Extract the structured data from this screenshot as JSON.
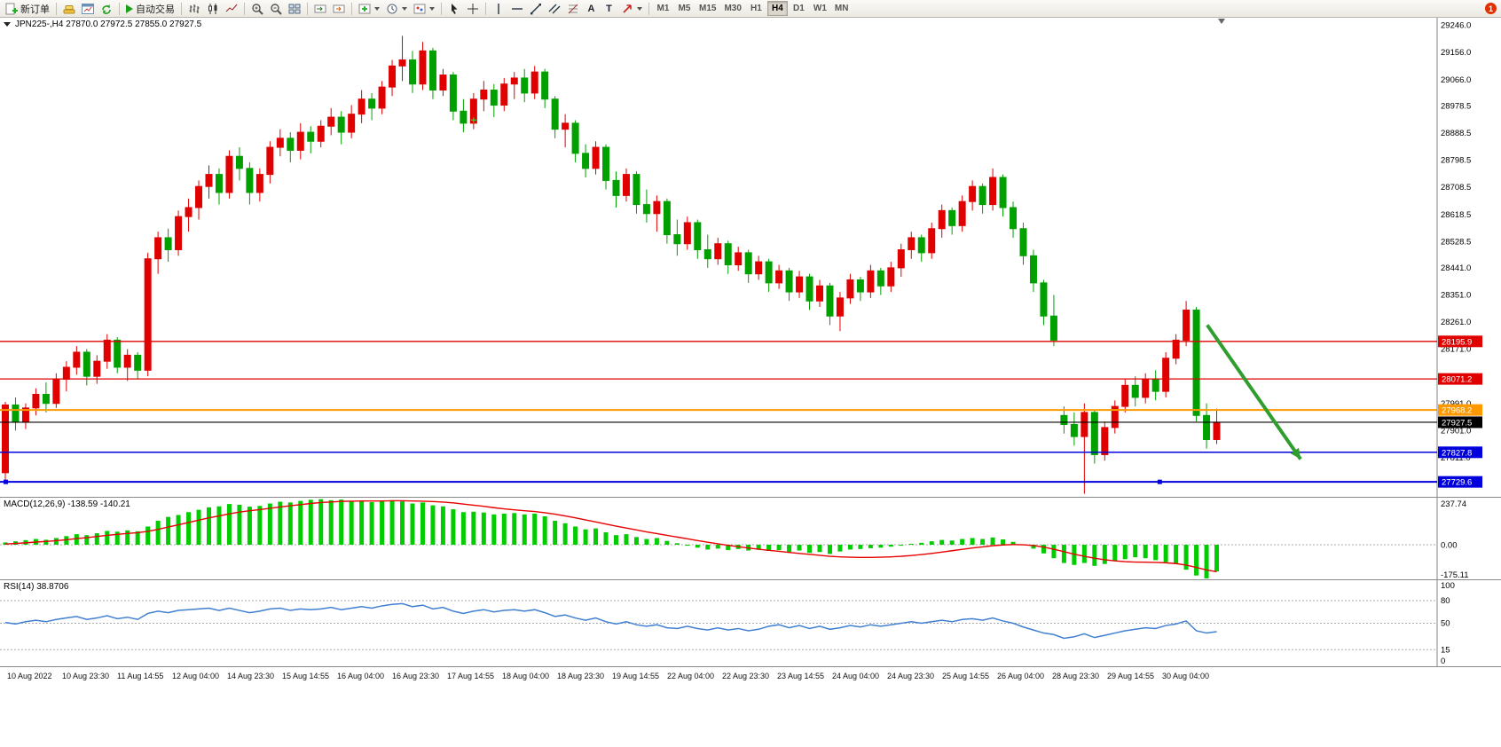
{
  "toolbar": {
    "new_order_label": "新订单",
    "autotrading_label": "自动交易",
    "timeframes": [
      "M1",
      "M5",
      "M15",
      "M30",
      "H1",
      "H4",
      "D1",
      "W1",
      "MN"
    ],
    "active_timeframe": "H4",
    "notification_count": "1"
  },
  "icons": {
    "text_tool": "A",
    "label_tool": "T"
  },
  "chart": {
    "info_text": "JPN225-,H4 27870.0 27972.5 27855.0 27927.5"
  },
  "colors": {
    "up": "#e00000",
    "down": "#00a000",
    "macd_hist": "#00cc00",
    "macd_signal": "#e80000",
    "rsi_line": "#4080d0",
    "grid_dash": "#a8a8a8",
    "axis_line": "#808080",
    "plus_marker": "#33cc33"
  },
  "chart_data": {
    "type": "candlestick+indicators",
    "symbol": "JPN225-",
    "timeframe": "H4",
    "price_range": [
      27680,
      29270
    ],
    "price_ticks": [
      "29246.0",
      "29156.0",
      "29066.0",
      "28978.5",
      "28888.5",
      "28798.5",
      "28708.5",
      "28618.5",
      "28528.5",
      "28441.0",
      "28351.0",
      "28261.0",
      "28171.0",
      "28081.0",
      "27991.0",
      "27901.0",
      "27811.0",
      "27721.0"
    ],
    "candles": [
      [
        27760,
        27995,
        27735,
        27985
      ],
      [
        27985,
        28010,
        27900,
        27930
      ],
      [
        27930,
        27990,
        27905,
        27975
      ],
      [
        27975,
        28040,
        27950,
        28020
      ],
      [
        28020,
        28060,
        27960,
        27990
      ],
      [
        27990,
        28090,
        27975,
        28070
      ],
      [
        28070,
        28130,
        28030,
        28110
      ],
      [
        28110,
        28180,
        28085,
        28160
      ],
      [
        28160,
        28170,
        28050,
        28080
      ],
      [
        28080,
        28150,
        28055,
        28130
      ],
      [
        28130,
        28220,
        28105,
        28200
      ],
      [
        28200,
        28210,
        28090,
        28110
      ],
      [
        28110,
        28170,
        28065,
        28150
      ],
      [
        28150,
        28160,
        28070,
        28100
      ],
      [
        28100,
        28490,
        28080,
        28470
      ],
      [
        28470,
        28560,
        28420,
        28540
      ],
      [
        28540,
        28570,
        28460,
        28500
      ],
      [
        28500,
        28630,
        28480,
        28610
      ],
      [
        28610,
        28670,
        28560,
        28640
      ],
      [
        28640,
        28730,
        28600,
        28710
      ],
      [
        28710,
        28780,
        28670,
        28750
      ],
      [
        28750,
        28770,
        28650,
        28690
      ],
      [
        28690,
        28830,
        28670,
        28810
      ],
      [
        28810,
        28840,
        28730,
        28770
      ],
      [
        28770,
        28790,
        28650,
        28690
      ],
      [
        28690,
        28770,
        28660,
        28750
      ],
      [
        28750,
        28860,
        28720,
        28840
      ],
      [
        28840,
        28900,
        28810,
        28870
      ],
      [
        28870,
        28890,
        28790,
        28830
      ],
      [
        28830,
        28920,
        28800,
        28890
      ],
      [
        28890,
        28910,
        28820,
        28860
      ],
      [
        28860,
        28930,
        28840,
        28910
      ],
      [
        28910,
        28970,
        28880,
        28940
      ],
      [
        28940,
        28960,
        28850,
        28890
      ],
      [
        28890,
        28980,
        28870,
        28950
      ],
      [
        28950,
        29030,
        28920,
        29000
      ],
      [
        29000,
        29020,
        28930,
        28970
      ],
      [
        28970,
        29060,
        28950,
        29040
      ],
      [
        29040,
        29130,
        29010,
        29110
      ],
      [
        29110,
        29210,
        29060,
        29130
      ],
      [
        29130,
        29160,
        29020,
        29050
      ],
      [
        29050,
        29190,
        29030,
        29160
      ],
      [
        29160,
        29170,
        29000,
        29030
      ],
      [
        29030,
        29100,
        29010,
        29080
      ],
      [
        29080,
        29090,
        28930,
        28960
      ],
      [
        28960,
        29000,
        28890,
        28920
      ],
      [
        28920,
        29020,
        28900,
        29000
      ],
      [
        29000,
        29060,
        28960,
        29030
      ],
      [
        29030,
        29050,
        28940,
        28980
      ],
      [
        28980,
        29070,
        28960,
        29050
      ],
      [
        29050,
        29090,
        29000,
        29070
      ],
      [
        29070,
        29100,
        28990,
        29020
      ],
      [
        29020,
        29110,
        29000,
        29090
      ],
      [
        29090,
        29100,
        28970,
        29000
      ],
      [
        29000,
        29010,
        28870,
        28900
      ],
      [
        28900,
        28950,
        28840,
        28920
      ],
      [
        28920,
        28930,
        28790,
        28820
      ],
      [
        28820,
        28850,
        28740,
        28770
      ],
      [
        28770,
        28860,
        28750,
        28840
      ],
      [
        28840,
        28850,
        28700,
        28730
      ],
      [
        28730,
        28760,
        28640,
        28680
      ],
      [
        28680,
        28770,
        28660,
        28750
      ],
      [
        28750,
        28760,
        28620,
        28650
      ],
      [
        28650,
        28700,
        28590,
        28620
      ],
      [
        28620,
        28680,
        28560,
        28660
      ],
      [
        28660,
        28670,
        28520,
        28550
      ],
      [
        28550,
        28600,
        28480,
        28520
      ],
      [
        28520,
        28610,
        28500,
        28590
      ],
      [
        28590,
        28600,
        28470,
        28500
      ],
      [
        28500,
        28550,
        28440,
        28470
      ],
      [
        28470,
        28540,
        28450,
        28520
      ],
      [
        28520,
        28530,
        28420,
        28450
      ],
      [
        28450,
        28510,
        28430,
        28490
      ],
      [
        28490,
        28500,
        28390,
        28420
      ],
      [
        28420,
        28480,
        28400,
        28460
      ],
      [
        28460,
        28470,
        28360,
        28390
      ],
      [
        28390,
        28450,
        28370,
        28430
      ],
      [
        28430,
        28440,
        28330,
        28360
      ],
      [
        28360,
        28430,
        28340,
        28410
      ],
      [
        28410,
        28420,
        28300,
        28330
      ],
      [
        28330,
        28400,
        28310,
        28380
      ],
      [
        28380,
        28390,
        28250,
        28280
      ],
      [
        28280,
        28360,
        28230,
        28340
      ],
      [
        28340,
        28420,
        28320,
        28400
      ],
      [
        28400,
        28410,
        28330,
        28360
      ],
      [
        28360,
        28450,
        28340,
        28430
      ],
      [
        28430,
        28440,
        28350,
        28380
      ],
      [
        28380,
        28460,
        28360,
        28440
      ],
      [
        28440,
        28520,
        28410,
        28500
      ],
      [
        28500,
        28560,
        28470,
        28540
      ],
      [
        28540,
        28550,
        28460,
        28490
      ],
      [
        28490,
        28590,
        28470,
        28570
      ],
      [
        28570,
        28650,
        28540,
        28630
      ],
      [
        28630,
        28640,
        28550,
        28580
      ],
      [
        28580,
        28680,
        28560,
        28660
      ],
      [
        28660,
        28730,
        28630,
        28710
      ],
      [
        28710,
        28720,
        28620,
        28650
      ],
      [
        28650,
        28770,
        28630,
        28740
      ],
      [
        28740,
        28750,
        28610,
        28640
      ],
      [
        28640,
        28660,
        28540,
        28570
      ],
      [
        28570,
        28590,
        28450,
        28480
      ],
      [
        28480,
        28500,
        28360,
        28390
      ],
      [
        28390,
        28400,
        28250,
        28280
      ],
      [
        28280,
        28350,
        28180,
        28200
      ],
      [
        27950,
        27980,
        27890,
        27920
      ],
      [
        27920,
        27960,
        27850,
        27880
      ],
      [
        27880,
        27990,
        27690,
        27960
      ],
      [
        27960,
        27970,
        27790,
        27820
      ],
      [
        27820,
        27930,
        27800,
        27910
      ],
      [
        27910,
        28000,
        27890,
        27980
      ],
      [
        27980,
        28070,
        27960,
        28050
      ],
      [
        28050,
        28080,
        27980,
        28010
      ],
      [
        28010,
        28090,
        27990,
        28070
      ],
      [
        28070,
        28100,
        28000,
        28030
      ],
      [
        28030,
        28160,
        28010,
        28140
      ],
      [
        28140,
        28220,
        28120,
        28200
      ],
      [
        28200,
        28330,
        28180,
        28300
      ],
      [
        28300,
        28310,
        27930,
        27950
      ],
      [
        27950,
        27990,
        27840,
        27870
      ],
      [
        27870,
        27972.5,
        27855,
        27927.5
      ]
    ],
    "plus_marker": {
      "i": 46,
      "price": 28930
    },
    "hlines": [
      {
        "price": 28195.9,
        "label": "28195.9",
        "color": "#e00000",
        "width": 1.3
      },
      {
        "price": 28071.2,
        "label": "28071.2",
        "color": "#e00000",
        "width": 1.3
      },
      {
        "price": 27968.2,
        "label": "27968.2",
        "color": "#ff9900",
        "width": 2
      },
      {
        "price": 27927.5,
        "label": "27927.5",
        "color": "#000000",
        "width": 1.2
      },
      {
        "price": 27827.8,
        "label": "27827.8",
        "color": "#0000dd",
        "width": 1.5
      },
      {
        "price": 27729.6,
        "label": "27729.6",
        "color": "#0000dd",
        "width": 2,
        "handle_fracs": [
          0.004,
          0.807
        ]
      }
    ],
    "arrow": {
      "x1_frac": 0.84,
      "price1": 28250,
      "x2_frac": 0.905,
      "price2": 27805,
      "color": "#2f9e2f",
      "width": 4
    },
    "time_labels": [
      "10 Aug 2022",
      "10 Aug 23:30",
      "11 Aug 14:55",
      "12 Aug 04:00",
      "14 Aug 23:30",
      "15 Aug 14:55",
      "16 Aug 04:00",
      "16 Aug 23:30",
      "17 Aug 14:55",
      "18 Aug 04:00",
      "18 Aug 23:30",
      "19 Aug 14:55",
      "22 Aug 04:00",
      "22 Aug 23:30",
      "23 Aug 14:55",
      "24 Aug 04:00",
      "24 Aug 23:30",
      "25 Aug 14:55",
      "26 Aug 04:00",
      "28 Aug 23:30",
      "29 Aug 14:55",
      "30 Aug 04:00"
    ],
    "macd": {
      "label": "MACD(12,26,9)",
      "values_text": "-138.59 -140.21",
      "scale": {
        "max": "237.74",
        "zero": "0.00",
        "min": "-175.11"
      },
      "range": [
        245,
        -180
      ],
      "histogram": [
        12,
        18,
        24,
        30,
        26,
        35,
        45,
        55,
        50,
        60,
        72,
        68,
        75,
        70,
        95,
        125,
        145,
        155,
        170,
        182,
        195,
        200,
        212,
        208,
        198,
        202,
        215,
        224,
        220,
        228,
        234,
        237.74,
        232,
        235,
        228,
        230,
        222,
        228,
        232,
        226,
        215,
        220,
        205,
        200,
        185,
        170,
        172,
        168,
        158,
        162,
        165,
        158,
        162,
        148,
        125,
        112,
        95,
        80,
        85,
        65,
        50,
        55,
        40,
        30,
        35,
        20,
        8,
        -5,
        -15,
        -25,
        -20,
        -28,
        -22,
        -30,
        -26,
        -32,
        -28,
        -38,
        -30,
        -42,
        -38,
        -48,
        -35,
        -25,
        -22,
        -18,
        -15,
        -10,
        -5,
        5,
        10,
        18,
        25,
        22,
        30,
        35,
        30,
        38,
        28,
        15,
        0,
        -20,
        -45,
        -70,
        -95,
        -105,
        -95,
        -110,
        -100,
        -85,
        -75,
        -65,
        -70,
        -80,
        -90,
        -100,
        -130,
        -160,
        -175.11,
        -138.59
      ],
      "signal": [
        4,
        7,
        10,
        14,
        17,
        21,
        26,
        32,
        37,
        43,
        49,
        54,
        59,
        63,
        70,
        80,
        92,
        104,
        116,
        128,
        140,
        150,
        161,
        170,
        177,
        183,
        190,
        197,
        203,
        209,
        215,
        220,
        223,
        226,
        227,
        228,
        228,
        228,
        229,
        229,
        228,
        227,
        225,
        222,
        218,
        212,
        206,
        200,
        193,
        187,
        182,
        177,
        173,
        167,
        159,
        150,
        140,
        129,
        119,
        108,
        97,
        87,
        77,
        67,
        58,
        49,
        40,
        31,
        22,
        13,
        5,
        -3,
        -10,
        -17,
        -23,
        -29,
        -34,
        -40,
        -45,
        -50,
        -55,
        -60,
        -63,
        -65,
        -66,
        -66,
        -65,
        -63,
        -60,
        -56,
        -51,
        -45,
        -38,
        -31,
        -24,
        -17,
        -11,
        -5,
        -1,
        1,
        0,
        -4,
        -12,
        -23,
        -36,
        -49,
        -60,
        -70,
        -78,
        -84,
        -88,
        -90,
        -91,
        -92,
        -94,
        -98,
        -106,
        -118,
        -131,
        -140.21
      ]
    },
    "rsi": {
      "label": "RSI(14)",
      "value_text": "38.8706",
      "levels": [
        "100",
        "80",
        "50",
        "15",
        "0"
      ],
      "values": [
        51,
        49,
        52,
        54,
        52,
        55,
        57,
        59,
        55,
        57,
        60,
        56,
        58,
        55,
        63,
        66,
        64,
        67,
        68,
        69,
        70,
        67,
        70,
        67,
        64,
        66,
        69,
        70,
        67,
        69,
        68,
        69,
        71,
        68,
        70,
        72,
        70,
        73,
        75,
        76,
        72,
        74,
        69,
        71,
        66,
        63,
        66,
        68,
        65,
        67,
        68,
        66,
        68,
        64,
        59,
        61,
        57,
        54,
        57,
        52,
        49,
        52,
        48,
        46,
        48,
        44,
        43,
        46,
        43,
        41,
        44,
        41,
        43,
        40,
        42,
        46,
        48,
        44,
        47,
        43,
        46,
        42,
        44,
        47,
        45,
        48,
        46,
        48,
        50,
        52,
        50,
        52,
        54,
        52,
        55,
        56,
        54,
        57,
        53,
        50,
        45,
        41,
        37,
        35,
        30,
        32,
        36,
        31,
        34,
        37,
        40,
        42,
        44,
        43,
        47,
        49,
        53,
        40,
        37,
        38.87
      ]
    }
  }
}
